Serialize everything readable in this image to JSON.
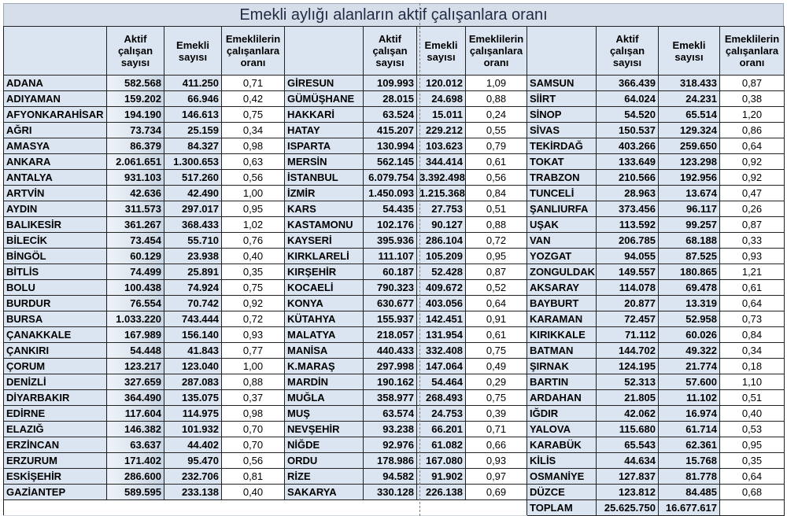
{
  "title": "Emekli aylığı alanların aktif çalışanlara oranı",
  "headers": {
    "name": "",
    "active": "Aktif çalışan sayısı",
    "retired": "Emekli sayısı",
    "ratio": "Emeklilerin çalışanlara oranı"
  },
  "groups": [
    [
      {
        "name": "ADANA",
        "active": "582.568",
        "retired": "411.250",
        "ratio": "0,71"
      },
      {
        "name": "ADIYAMAN",
        "active": "159.202",
        "retired": "66.946",
        "ratio": "0,42"
      },
      {
        "name": "AFYONKARAHİSAR",
        "active": "194.190",
        "retired": "146.613",
        "ratio": "0,75"
      },
      {
        "name": "AĞRI",
        "active": "73.734",
        "retired": "25.159",
        "ratio": "0,34"
      },
      {
        "name": "AMASYA",
        "active": "86.379",
        "retired": "84.327",
        "ratio": "0,98"
      },
      {
        "name": "ANKARA",
        "active": "2.061.651",
        "retired": "1.300.653",
        "ratio": "0,63"
      },
      {
        "name": "ANTALYA",
        "active": "931.103",
        "retired": "517.260",
        "ratio": "0,56"
      },
      {
        "name": "ARTVİN",
        "active": "42.636",
        "retired": "42.490",
        "ratio": "1,00"
      },
      {
        "name": "AYDIN",
        "active": "311.573",
        "retired": "297.017",
        "ratio": "0,95"
      },
      {
        "name": "BALIKESİR",
        "active": "361.267",
        "retired": "368.433",
        "ratio": "1,02"
      },
      {
        "name": "BİLECİK",
        "active": "73.454",
        "retired": "55.710",
        "ratio": "0,76"
      },
      {
        "name": "BİNGÖL",
        "active": "60.129",
        "retired": "23.938",
        "ratio": "0,40"
      },
      {
        "name": "BİTLİS",
        "active": "74.499",
        "retired": "25.891",
        "ratio": "0,35"
      },
      {
        "name": "BOLU",
        "active": "100.438",
        "retired": "74.924",
        "ratio": "0,75"
      },
      {
        "name": "BURDUR",
        "active": "76.554",
        "retired": "70.742",
        "ratio": "0,92"
      },
      {
        "name": "BURSA",
        "active": "1.033.220",
        "retired": "743.444",
        "ratio": "0,72"
      },
      {
        "name": "ÇANAKKALE",
        "active": "167.989",
        "retired": "156.140",
        "ratio": "0,93"
      },
      {
        "name": "ÇANKIRI",
        "active": "54.448",
        "retired": "41.843",
        "ratio": "0,77"
      },
      {
        "name": "ÇORUM",
        "active": "123.217",
        "retired": "123.040",
        "ratio": "1,00"
      },
      {
        "name": "DENİZLİ",
        "active": "327.659",
        "retired": "287.083",
        "ratio": "0,88"
      },
      {
        "name": "DİYARBAKIR",
        "active": "364.490",
        "retired": "135.075",
        "ratio": "0,37"
      },
      {
        "name": "EDİRNE",
        "active": "117.604",
        "retired": "114.975",
        "ratio": "0,98"
      },
      {
        "name": "ELAZIĞ",
        "active": "146.382",
        "retired": "101.932",
        "ratio": "0,70"
      },
      {
        "name": "ERZİNCAN",
        "active": "63.637",
        "retired": "44.402",
        "ratio": "0,70"
      },
      {
        "name": "ERZURUM",
        "active": "171.402",
        "retired": "95.470",
        "ratio": "0,56"
      },
      {
        "name": "ESKİŞEHİR",
        "active": "286.600",
        "retired": "232.706",
        "ratio": "0,81"
      },
      {
        "name": "GAZİANTEP",
        "active": "589.595",
        "retired": "233.138",
        "ratio": "0,40"
      }
    ],
    [
      {
        "name": "GİRESUN",
        "active": "109.993",
        "retired": "120.012",
        "ratio": "1,09"
      },
      {
        "name": "GÜMÜŞHANE",
        "active": "28.015",
        "retired": "24.698",
        "ratio": "0,88"
      },
      {
        "name": "HAKKARİ",
        "active": "63.524",
        "retired": "15.011",
        "ratio": "0,24"
      },
      {
        "name": "HATAY",
        "active": "415.207",
        "retired": "229.212",
        "ratio": "0,55"
      },
      {
        "name": "ISPARTA",
        "active": "130.994",
        "retired": "103.623",
        "ratio": "0,79"
      },
      {
        "name": "MERSİN",
        "active": "562.145",
        "retired": "344.414",
        "ratio": "0,61"
      },
      {
        "name": "İSTANBUL",
        "active": "6.079.754",
        "retired": "3.392.498",
        "ratio": "0,56"
      },
      {
        "name": "İZMİR",
        "active": "1.450.093",
        "retired": "1.215.368",
        "ratio": "0,84"
      },
      {
        "name": "KARS",
        "active": "54.435",
        "retired": "27.753",
        "ratio": "0,51"
      },
      {
        "name": "KASTAMONU",
        "active": "102.176",
        "retired": "90.127",
        "ratio": "0,88"
      },
      {
        "name": "KAYSERİ",
        "active": "395.936",
        "retired": "286.104",
        "ratio": "0,72"
      },
      {
        "name": "KIRKLARELİ",
        "active": "111.107",
        "retired": "105.209",
        "ratio": "0,95"
      },
      {
        "name": "KIRŞEHİR",
        "active": "60.187",
        "retired": "52.428",
        "ratio": "0,87"
      },
      {
        "name": "KOCAELİ",
        "active": "790.323",
        "retired": "409.672",
        "ratio": "0,52"
      },
      {
        "name": "KONYA",
        "active": "630.677",
        "retired": "403.056",
        "ratio": "0,64"
      },
      {
        "name": "KÜTAHYA",
        "active": "155.937",
        "retired": "142.451",
        "ratio": "0,91"
      },
      {
        "name": "MALATYA",
        "active": "218.057",
        "retired": "131.954",
        "ratio": "0,61"
      },
      {
        "name": "MANİSA",
        "active": "440.433",
        "retired": "332.408",
        "ratio": "0,75"
      },
      {
        "name": "K.MARAŞ",
        "active": "297.998",
        "retired": "147.064",
        "ratio": "0,49"
      },
      {
        "name": "MARDİN",
        "active": "190.162",
        "retired": "54.464",
        "ratio": "0,29"
      },
      {
        "name": "MUĞLA",
        "active": "358.977",
        "retired": "268.493",
        "ratio": "0,75"
      },
      {
        "name": "MUŞ",
        "active": "63.574",
        "retired": "24.753",
        "ratio": "0,39"
      },
      {
        "name": "NEVŞEHİR",
        "active": "93.238",
        "retired": "66.201",
        "ratio": "0,71"
      },
      {
        "name": "NİĞDE",
        "active": "92.976",
        "retired": "61.082",
        "ratio": "0,66"
      },
      {
        "name": "ORDU",
        "active": "178.986",
        "retired": "167.080",
        "ratio": "0,93"
      },
      {
        "name": "RİZE",
        "active": "94.582",
        "retired": "91.902",
        "ratio": "0,97"
      },
      {
        "name": "SAKARYA",
        "active": "330.128",
        "retired": "226.138",
        "ratio": "0,69"
      }
    ],
    [
      {
        "name": "SAMSUN",
        "active": "366.439",
        "retired": "318.433",
        "ratio": "0,87"
      },
      {
        "name": "SİİRT",
        "active": "64.024",
        "retired": "24.231",
        "ratio": "0,38"
      },
      {
        "name": "SİNOP",
        "active": "54.520",
        "retired": "65.514",
        "ratio": "1,20"
      },
      {
        "name": "SİVAS",
        "active": "150.537",
        "retired": "129.324",
        "ratio": "0,86"
      },
      {
        "name": "TEKİRDAĞ",
        "active": "403.266",
        "retired": "259.650",
        "ratio": "0,64"
      },
      {
        "name": "TOKAT",
        "active": "133.649",
        "retired": "123.298",
        "ratio": "0,92"
      },
      {
        "name": "TRABZON",
        "active": "210.566",
        "retired": "192.956",
        "ratio": "0,92"
      },
      {
        "name": "TUNCELİ",
        "active": "28.963",
        "retired": "13.674",
        "ratio": "0,47"
      },
      {
        "name": "ŞANLIURFA",
        "active": "373.456",
        "retired": "96.117",
        "ratio": "0,26"
      },
      {
        "name": "UŞAK",
        "active": "113.592",
        "retired": "99.257",
        "ratio": "0,87"
      },
      {
        "name": "VAN",
        "active": "206.785",
        "retired": "68.188",
        "ratio": "0,33"
      },
      {
        "name": "YOZGAT",
        "active": "94.055",
        "retired": "87.525",
        "ratio": "0,93"
      },
      {
        "name": "ZONGULDAK",
        "active": "149.557",
        "retired": "180.865",
        "ratio": "1,21"
      },
      {
        "name": "AKSARAY",
        "active": "114.078",
        "retired": "69.478",
        "ratio": "0,61"
      },
      {
        "name": "BAYBURT",
        "active": "20.877",
        "retired": "13.319",
        "ratio": "0,64"
      },
      {
        "name": "KARAMAN",
        "active": "72.457",
        "retired": "52.958",
        "ratio": "0,73"
      },
      {
        "name": "KIRIKKALE",
        "active": "71.112",
        "retired": "60.026",
        "ratio": "0,84"
      },
      {
        "name": "BATMAN",
        "active": "144.702",
        "retired": "49.322",
        "ratio": "0,34"
      },
      {
        "name": "ŞIRNAK",
        "active": "124.195",
        "retired": "21.774",
        "ratio": "0,18"
      },
      {
        "name": "BARTIN",
        "active": "52.313",
        "retired": "57.600",
        "ratio": "1,10"
      },
      {
        "name": "ARDAHAN",
        "active": "21.805",
        "retired": "11.102",
        "ratio": "0,51"
      },
      {
        "name": "IĞDIR",
        "active": "42.062",
        "retired": "16.974",
        "ratio": "0,40"
      },
      {
        "name": "YALOVA",
        "active": "115.680",
        "retired": "61.714",
        "ratio": "0,53"
      },
      {
        "name": "KARABÜK",
        "active": "65.543",
        "retired": "62.361",
        "ratio": "0,95"
      },
      {
        "name": "KİLİS",
        "active": "44.634",
        "retired": "15.768",
        "ratio": "0,35"
      },
      {
        "name": "OSMANİYE",
        "active": "127.837",
        "retired": "81.778",
        "ratio": "0,64"
      },
      {
        "name": "DÜZCE",
        "active": "123.812",
        "retired": "84.485",
        "ratio": "0,68"
      }
    ]
  ],
  "total": {
    "label": "TOPLAM",
    "active": "25.625.750",
    "retired": "16.677.617"
  }
}
